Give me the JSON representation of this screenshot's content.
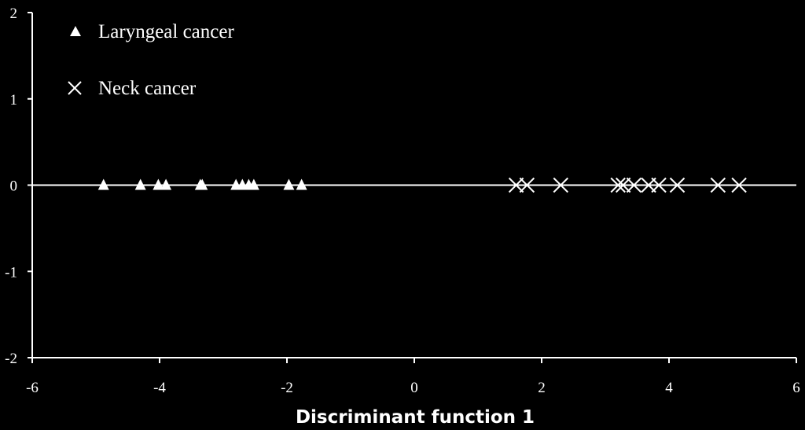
{
  "chart_data": {
    "type": "scatter",
    "title": "",
    "xlabel": "Discriminant function 1",
    "ylabel": "",
    "xlim": [
      -6,
      6
    ],
    "ylim": [
      -2,
      2
    ],
    "x_ticks": [
      "-6",
      "-4",
      "-2",
      "0",
      "2",
      "4",
      "6"
    ],
    "y_ticks": [
      "2",
      "1",
      "0",
      "-1",
      "-2"
    ],
    "grid": false,
    "legend_position": "top-left",
    "series": [
      {
        "name": "Laryngeal cancer",
        "marker": "triangle",
        "color": "#ffffff",
        "points": [
          {
            "x": -4.88,
            "y": 0
          },
          {
            "x": -4.3,
            "y": 0
          },
          {
            "x": -4.02,
            "y": 0
          },
          {
            "x": -3.9,
            "y": 0
          },
          {
            "x": -3.36,
            "y": 0
          },
          {
            "x": -3.33,
            "y": 0
          },
          {
            "x": -2.8,
            "y": 0
          },
          {
            "x": -2.7,
            "y": 0
          },
          {
            "x": -2.6,
            "y": 0
          },
          {
            "x": -2.52,
            "y": 0
          },
          {
            "x": -1.97,
            "y": 0
          },
          {
            "x": -1.77,
            "y": 0
          }
        ]
      },
      {
        "name": "Neck cancer",
        "marker": "x",
        "color": "#ffffff",
        "points": [
          {
            "x": 1.6,
            "y": 0
          },
          {
            "x": 1.77,
            "y": 0
          },
          {
            "x": 2.3,
            "y": 0
          },
          {
            "x": 3.2,
            "y": 0
          },
          {
            "x": 3.28,
            "y": 0
          },
          {
            "x": 3.45,
            "y": 0
          },
          {
            "x": 3.68,
            "y": 0
          },
          {
            "x": 3.84,
            "y": 0
          },
          {
            "x": 4.13,
            "y": 0
          },
          {
            "x": 4.77,
            "y": 0
          },
          {
            "x": 5.1,
            "y": 0
          }
        ]
      }
    ]
  }
}
